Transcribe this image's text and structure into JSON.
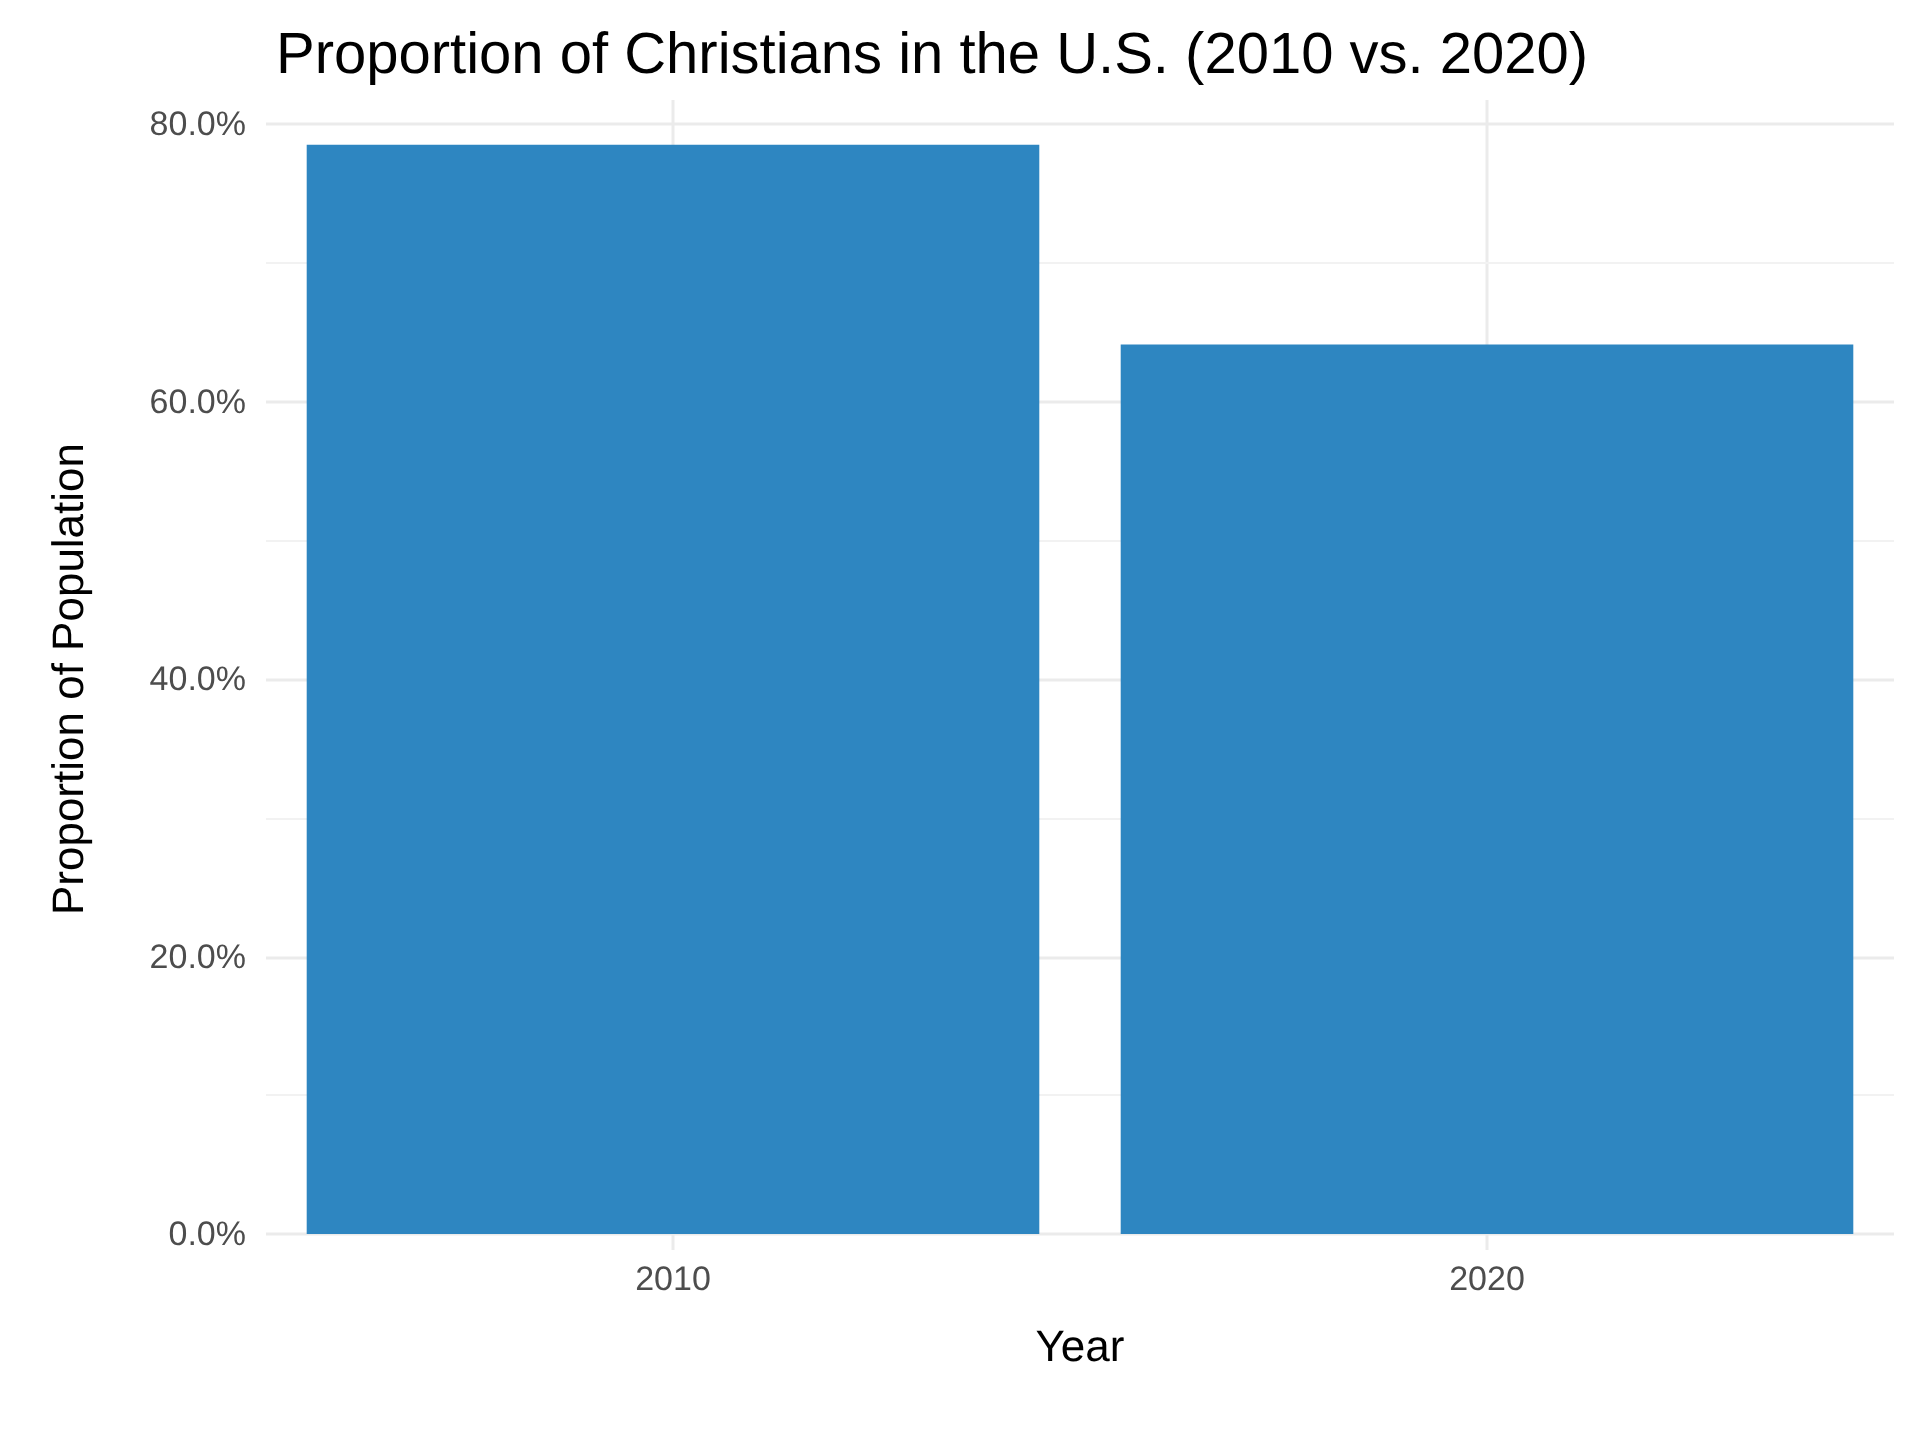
{
  "chart_data": {
    "type": "bar",
    "title": "Proportion of Christians in the U.S. (2010 vs. 2020)",
    "xlabel": "Year",
    "ylabel": "Proportion of Population",
    "categories": [
      "2010",
      "2020"
    ],
    "values": [
      78.5,
      64.1
    ],
    "color": "#2e86c1",
    "ylim": [
      0,
      80
    ],
    "yticks": [
      {
        "value": 0,
        "label": "0.0%"
      },
      {
        "value": 20,
        "label": "20.0%"
      },
      {
        "value": 40,
        "label": "40.0%"
      },
      {
        "value": 60,
        "label": "60.0%"
      },
      {
        "value": 80,
        "label": "80.0%"
      }
    ],
    "grid": true
  }
}
